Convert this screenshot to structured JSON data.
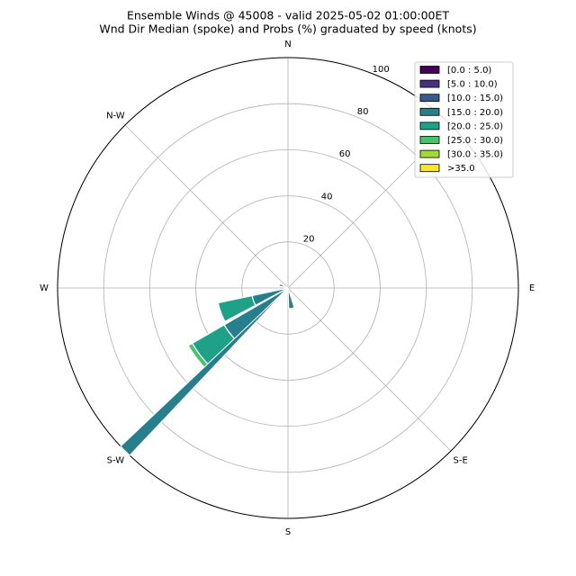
{
  "chart_data": {
    "type": "windrose",
    "title": "Ensemble Winds @ 45008 - valid 2025-05-02 01:00:00ET",
    "subtitle": "Wnd Dir Median (spoke) and Probs (%) graduated by speed (knots)",
    "theta": [
      170,
      232,
      250,
      290
    ],
    "series": [
      {
        "name": "[0.0 : 5.0)",
        "color": "#440154",
        "values": [
          0,
          0,
          0,
          0
        ]
      },
      {
        "name": "[5.0 : 10.0)",
        "color": "#46327e",
        "values": [
          0,
          0,
          0,
          0
        ]
      },
      {
        "name": "[10.0 : 15.0)",
        "color": "#365c8d",
        "values": [
          0,
          0,
          0,
          0
        ]
      },
      {
        "name": "[15.0 : 20.0)",
        "color": "#277f8e",
        "values": [
          9,
          32,
          16,
          4
        ]
      },
      {
        "name": "[20.0 : 25.0)",
        "color": "#1fa187",
        "values": [
          0,
          16,
          15,
          0
        ]
      },
      {
        "name": "[25.0 : 30.0)",
        "color": "#4ac16d",
        "values": [
          0,
          2,
          0,
          0
        ]
      },
      {
        "name": "[30.0 : 35.0)",
        "color": "#a0da39",
        "values": [
          0,
          0,
          0,
          0
        ]
      },
      {
        "name": ">35.0",
        "color": "#fde725",
        "values": [
          0,
          0,
          0,
          0
        ]
      }
    ],
    "median_direction": 225,
    "spoke_color": "#277f8e",
    "rlim": [
      0,
      100
    ],
    "rticks": [
      20,
      40,
      60,
      80,
      100
    ],
    "thetaticks": [
      {
        "value": 0,
        "label": "N"
      },
      {
        "value": 90,
        "label": "E"
      },
      {
        "value": 135,
        "label": "S-E"
      },
      {
        "value": 180,
        "label": "S"
      },
      {
        "value": 225,
        "label": "S-W"
      },
      {
        "value": 270,
        "label": "W"
      },
      {
        "value": 315,
        "label": "N-W"
      }
    ],
    "grid": true,
    "legend": "upper right"
  }
}
